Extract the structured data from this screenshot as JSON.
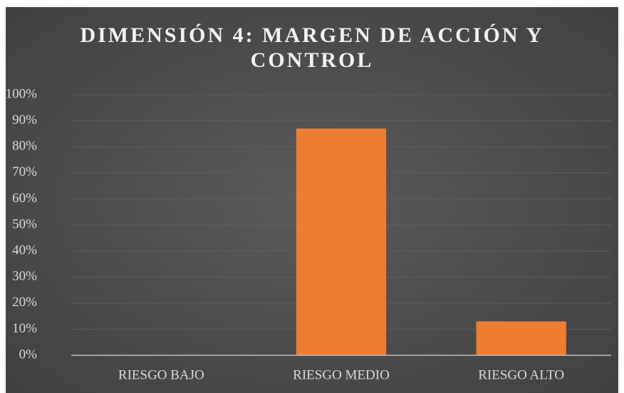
{
  "chart_data": {
    "type": "bar",
    "title": "DIMENSIÓN 4: MARGEN DE ACCIÓN Y CONTROL",
    "categories": [
      "RIESGO BAJO",
      "RIESGO MEDIO",
      "RIESGO ALTO"
    ],
    "values": [
      0,
      87,
      13
    ],
    "color": "#ed7d31",
    "ylim": [
      0,
      100
    ],
    "yticks": [
      {
        "value": 0,
        "label": "0%"
      },
      {
        "value": 10,
        "label": "10%"
      },
      {
        "value": 20,
        "label": "20%"
      },
      {
        "value": 30,
        "label": "30%"
      },
      {
        "value": 40,
        "label": "40%"
      },
      {
        "value": 50,
        "label": "50%"
      },
      {
        "value": 60,
        "label": "60%"
      },
      {
        "value": 70,
        "label": "70%"
      },
      {
        "value": 80,
        "label": "80%"
      },
      {
        "value": 90,
        "label": "90%"
      },
      {
        "value": 100,
        "label": "100%"
      }
    ],
    "grid": true
  }
}
